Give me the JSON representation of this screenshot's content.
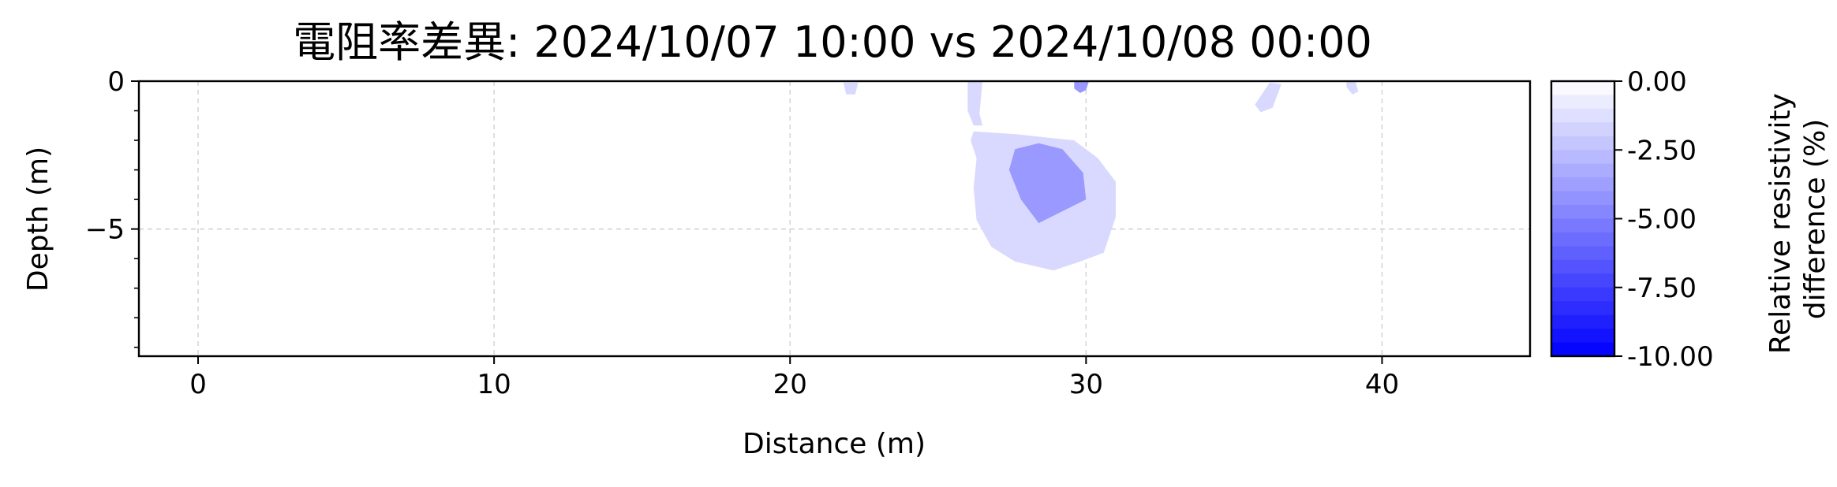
{
  "chart_data": {
    "type": "heatmap",
    "title": "電阻率差異: 2024/10/07 10:00 vs 2024/10/08 00:00",
    "xlabel": "Distance (m)",
    "ylabel": "Depth (m)",
    "xlim": [
      -2,
      45
    ],
    "ylim": [
      -9.3,
      0
    ],
    "xticks": [
      0,
      10,
      20,
      30,
      40
    ],
    "xtick_labels": [
      "0",
      "10",
      "20",
      "30",
      "40"
    ],
    "yticks": [
      0,
      -5
    ],
    "ytick_labels": [
      "0",
      "−5"
    ],
    "grid": true,
    "colorbar": {
      "label_line1": "Relative resistivity",
      "label_line2": "difference (%)",
      "range": [
        -10,
        0
      ],
      "ticks": [
        0,
        -2.5,
        -5,
        -7.5,
        -10
      ],
      "tick_labels": [
        "0.00",
        "-2.50",
        "-5.00",
        "-7.50",
        "-10.00"
      ],
      "levels": 20,
      "colors": {
        "low": "#0000ff",
        "high": "#ffffff"
      }
    },
    "contours": [
      {
        "level": -1.5,
        "points": [
          [
            26.2,
            -1.7
          ],
          [
            27.7,
            -1.8
          ],
          [
            28.6,
            -1.9
          ],
          [
            29.6,
            -2.0
          ],
          [
            30.4,
            -2.6
          ],
          [
            31.0,
            -3.4
          ],
          [
            31.0,
            -4.6
          ],
          [
            30.6,
            -5.8
          ],
          [
            29.8,
            -6.1
          ],
          [
            28.9,
            -6.4
          ],
          [
            27.6,
            -6.1
          ],
          [
            26.8,
            -5.6
          ],
          [
            26.3,
            -4.7
          ],
          [
            26.2,
            -3.6
          ],
          [
            26.3,
            -2.6
          ],
          [
            26.1,
            -2.0
          ]
        ]
      },
      {
        "level": -4.0,
        "points": [
          [
            27.6,
            -2.3
          ],
          [
            28.4,
            -2.1
          ],
          [
            29.2,
            -2.3
          ],
          [
            29.9,
            -3.1
          ],
          [
            30.0,
            -4.0
          ],
          [
            29.0,
            -4.5
          ],
          [
            28.4,
            -4.8
          ],
          [
            27.8,
            -4.0
          ],
          [
            27.4,
            -3.0
          ]
        ]
      },
      {
        "level": -1.5,
        "points": [
          [
            21.8,
            -0.05
          ],
          [
            22.3,
            -0.05
          ],
          [
            22.2,
            -0.45
          ],
          [
            21.9,
            -0.45
          ]
        ]
      },
      {
        "level": -1.5,
        "points": [
          [
            26.0,
            0.0
          ],
          [
            26.5,
            0.0
          ],
          [
            26.4,
            -1.1
          ],
          [
            26.5,
            -1.5
          ],
          [
            26.2,
            -1.5
          ],
          [
            26.0,
            -1.0
          ]
        ]
      },
      {
        "level": -4.0,
        "points": [
          [
            29.6,
            0.0
          ],
          [
            30.1,
            0.0
          ],
          [
            30.0,
            -0.3
          ],
          [
            29.8,
            -0.4
          ],
          [
            29.6,
            -0.25
          ]
        ]
      },
      {
        "level": -1.5,
        "points": [
          [
            36.2,
            -0.05
          ],
          [
            36.6,
            -0.1
          ],
          [
            36.3,
            -0.9
          ],
          [
            35.9,
            -1.05
          ],
          [
            35.7,
            -0.8
          ]
        ]
      },
      {
        "level": -1.5,
        "points": [
          [
            38.8,
            0.0
          ],
          [
            39.1,
            0.0
          ],
          [
            39.2,
            -0.35
          ],
          [
            39.0,
            -0.45
          ],
          [
            38.8,
            -0.2
          ]
        ]
      }
    ]
  }
}
